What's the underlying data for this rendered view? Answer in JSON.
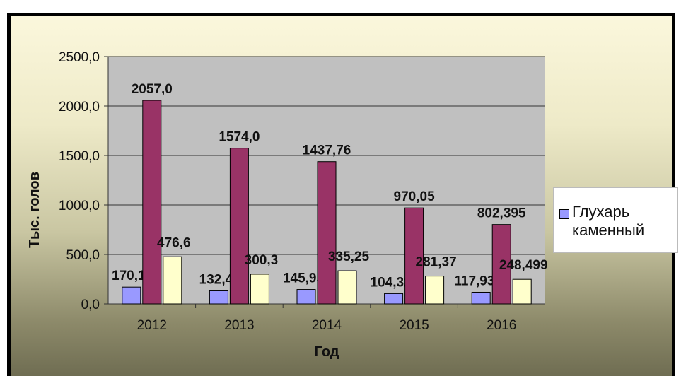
{
  "chart_data": {
    "type": "bar",
    "categories": [
      "2012",
      "2013",
      "2014",
      "2015",
      "2016"
    ],
    "series": [
      {
        "name": "Глухарь каменный",
        "color": "#9999ff",
        "values": [
          170.1,
          132.4,
          145.95,
          104.32,
          117.93
        ],
        "labels": [
          "170,1",
          "132,4",
          "145,95",
          "104,32",
          "117,930"
        ]
      },
      {
        "name": "",
        "color": "#993366",
        "values": [
          2057.0,
          1574.0,
          1437.76,
          970.05,
          802.395
        ],
        "labels": [
          "2057,0",
          "1574,0",
          "1437,76",
          "970,05",
          "802,395"
        ]
      },
      {
        "name": "",
        "color": "#ffffcc",
        "values": [
          476.6,
          300.3,
          335.25,
          281.37,
          248.499
        ],
        "labels": [
          "476,6",
          "300,3",
          "335,25",
          "281,37",
          "248,499"
        ]
      }
    ],
    "yticks": [
      "0,0",
      "500,0",
      "1000,0",
      "1500,0",
      "2000,0",
      "2500,0"
    ],
    "xlabel": "Год",
    "ylabel": "Тыс. голов",
    "ylim": [
      0,
      2500
    ],
    "grid": true,
    "legend_position": "right",
    "plot_background": "#c0c0c0"
  }
}
